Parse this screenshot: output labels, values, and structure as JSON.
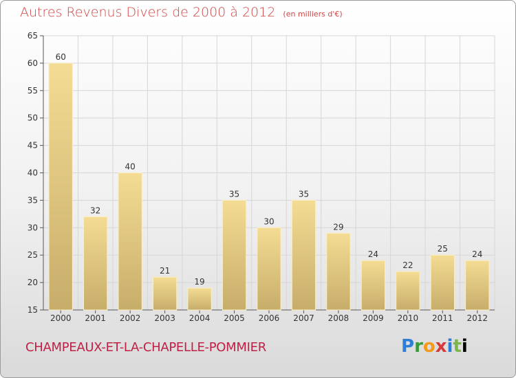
{
  "header": {
    "title": "Autres Revenus Divers de 2000 à 2012",
    "unit": "(en milliers d'€)"
  },
  "footer": {
    "commune": "CHAMPEAUX-ET-LA-CHAPELLE-POMMIER",
    "logo_text": "Proxiti"
  },
  "colors": {
    "title": "#d04545",
    "commune": "#c02045",
    "bar_top": "#f4dc94",
    "bar_bottom": "#c7ad6a",
    "grid": "#d6d6d6"
  },
  "chart_data": {
    "type": "bar",
    "title": "Autres Revenus Divers de 2000 à 2012",
    "categories": [
      "2000",
      "2001",
      "2002",
      "2003",
      "2004",
      "2005",
      "2006",
      "2007",
      "2008",
      "2009",
      "2010",
      "2011",
      "2012"
    ],
    "values": [
      60,
      32,
      40,
      21,
      19,
      35,
      30,
      35,
      29,
      24,
      22,
      25,
      24
    ],
    "ylim": [
      15,
      65
    ],
    "yticks": [
      15,
      20,
      25,
      30,
      35,
      40,
      45,
      50,
      55,
      60,
      65
    ],
    "grid": true,
    "legend": "none"
  }
}
